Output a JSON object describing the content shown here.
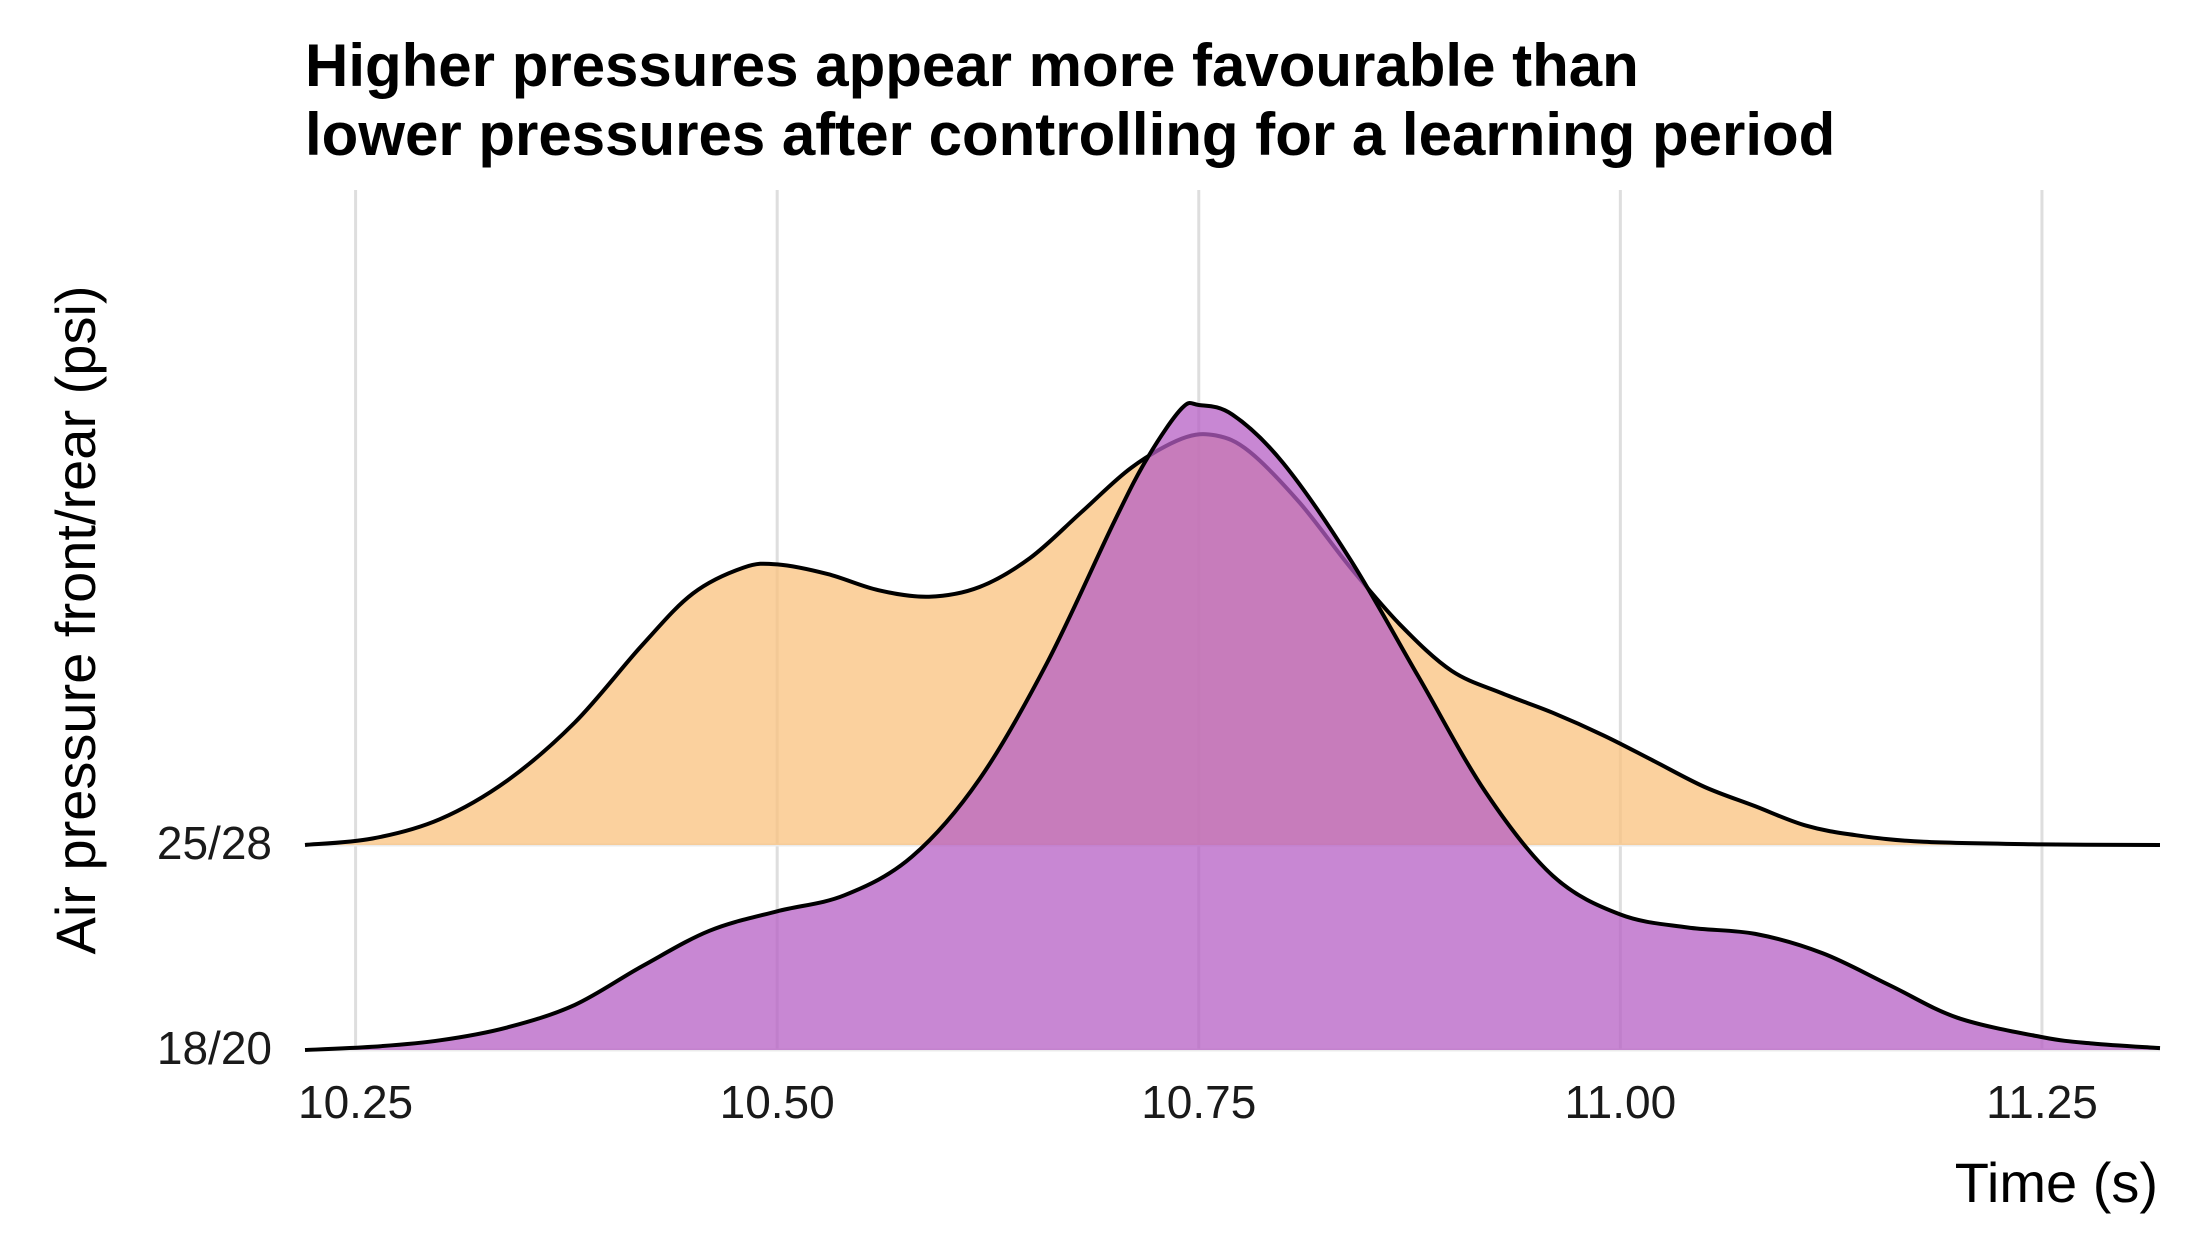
{
  "chart_data": {
    "type": "area",
    "subtype": "ridgeline",
    "title": "Higher pressures appear more favourable than lower pressures after controlling for a learning period",
    "title_lines": [
      "Higher pressures appear more favourable than",
      "lower pressures after controlling for a learning period"
    ],
    "xlabel": "Time (s)",
    "ylabel": "Air pressure front/rear (psi)",
    "xlim": [
      10.22,
      11.32
    ],
    "x_ticks": [
      10.25,
      10.5,
      10.75,
      11.0,
      11.25
    ],
    "x_tick_labels": [
      "10.25",
      "10.50",
      "10.75",
      "11.00",
      "11.25"
    ],
    "grid": true,
    "legend": "none",
    "series": [
      {
        "name": "18/20",
        "color": "#b55fc4",
        "opacity": 0.75,
        "points": [
          [
            10.22,
            0.0
          ],
          [
            10.26,
            0.005
          ],
          [
            10.3,
            0.015
          ],
          [
            10.34,
            0.035
          ],
          [
            10.38,
            0.07
          ],
          [
            10.42,
            0.13
          ],
          [
            10.46,
            0.185
          ],
          [
            10.5,
            0.215
          ],
          [
            10.54,
            0.24
          ],
          [
            10.58,
            0.3
          ],
          [
            10.62,
            0.42
          ],
          [
            10.66,
            0.6
          ],
          [
            10.7,
            0.82
          ],
          [
            10.72,
            0.92
          ],
          [
            10.74,
            0.995
          ],
          [
            10.75,
            1.0
          ],
          [
            10.77,
            0.985
          ],
          [
            10.8,
            0.91
          ],
          [
            10.84,
            0.76
          ],
          [
            10.88,
            0.58
          ],
          [
            10.92,
            0.4
          ],
          [
            10.96,
            0.27
          ],
          [
            11.0,
            0.21
          ],
          [
            11.04,
            0.19
          ],
          [
            11.08,
            0.18
          ],
          [
            11.12,
            0.15
          ],
          [
            11.16,
            0.1
          ],
          [
            11.2,
            0.05
          ],
          [
            11.25,
            0.02
          ],
          [
            11.28,
            0.01
          ],
          [
            11.32,
            0.003
          ]
        ]
      },
      {
        "name": "25/28",
        "color": "#f9c27e",
        "opacity": 0.75,
        "points": [
          [
            10.22,
            0.0
          ],
          [
            10.26,
            0.01
          ],
          [
            10.3,
            0.04
          ],
          [
            10.34,
            0.1
          ],
          [
            10.38,
            0.19
          ],
          [
            10.42,
            0.31
          ],
          [
            10.45,
            0.39
          ],
          [
            10.48,
            0.43
          ],
          [
            10.5,
            0.435
          ],
          [
            10.53,
            0.42
          ],
          [
            10.56,
            0.395
          ],
          [
            10.59,
            0.385
          ],
          [
            10.62,
            0.4
          ],
          [
            10.65,
            0.445
          ],
          [
            10.68,
            0.515
          ],
          [
            10.71,
            0.585
          ],
          [
            10.74,
            0.63
          ],
          [
            10.76,
            0.635
          ],
          [
            10.78,
            0.61
          ],
          [
            10.81,
            0.53
          ],
          [
            10.84,
            0.43
          ],
          [
            10.87,
            0.34
          ],
          [
            10.9,
            0.27
          ],
          [
            10.93,
            0.235
          ],
          [
            10.96,
            0.205
          ],
          [
            10.99,
            0.17
          ],
          [
            11.02,
            0.13
          ],
          [
            11.05,
            0.09
          ],
          [
            11.08,
            0.06
          ],
          [
            11.11,
            0.03
          ],
          [
            11.14,
            0.015
          ],
          [
            11.18,
            0.005
          ],
          [
            11.25,
            0.001
          ],
          [
            11.32,
            0.0
          ]
        ]
      }
    ]
  }
}
